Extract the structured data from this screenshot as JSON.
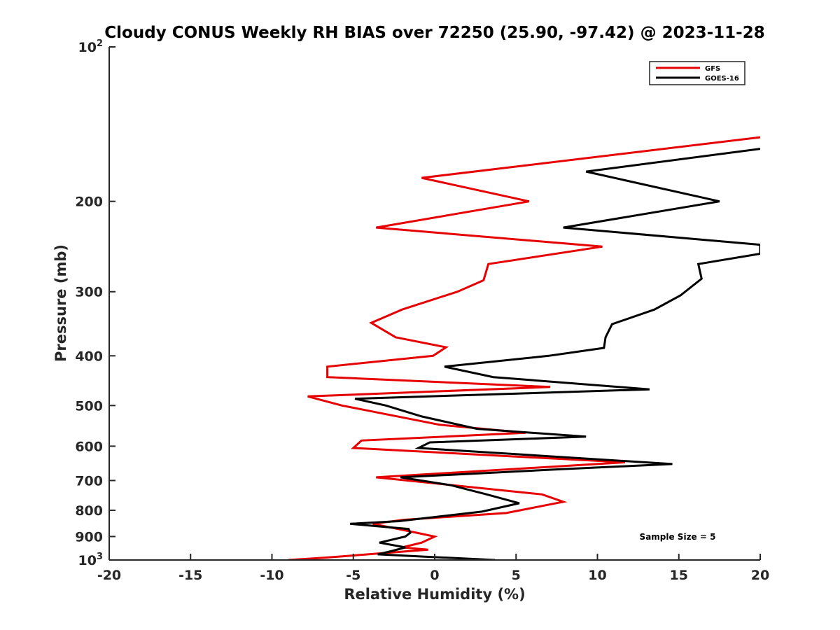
{
  "chart_data": {
    "type": "line",
    "title": "Cloudy CONUS Weekly RH BIAS over 72250 (25.90, -97.42) @ 2023-11-28",
    "xlabel": "Relative Humidity (%)",
    "ylabel": "Pressure (mb)",
    "xlim": [
      -20,
      20
    ],
    "ylim": [
      100,
      1000
    ],
    "y_scale": "log",
    "y_reversed": true,
    "x_ticks": [
      "-20",
      "-15",
      "-10",
      "-5",
      "0",
      "5",
      "10",
      "15",
      "20"
    ],
    "y_ticks": [
      {
        "value": 100,
        "base": "10",
        "exp": "2"
      },
      {
        "value": 200,
        "label": "200"
      },
      {
        "value": 300,
        "label": "300"
      },
      {
        "value": 400,
        "label": "400"
      },
      {
        "value": 500,
        "label": "500"
      },
      {
        "value": 600,
        "label": "600"
      },
      {
        "value": 700,
        "label": "700"
      },
      {
        "value": 800,
        "label": "800"
      },
      {
        "value": 900,
        "label": "900"
      },
      {
        "value": 1000,
        "base": "10",
        "exp": "3"
      }
    ],
    "legend_position": "top-right",
    "grid": false,
    "annotation": "Sample Size = 5",
    "series": [
      {
        "name": "GFS",
        "color": "#e60000",
        "points": [
          [
            20.0,
            150
          ],
          [
            -0.8,
            180
          ],
          [
            5.8,
            200
          ],
          [
            -3.6,
            225
          ],
          [
            10.3,
            245
          ],
          [
            3.3,
            265
          ],
          [
            3.0,
            285
          ],
          [
            1.4,
            300
          ],
          [
            -2.0,
            325
          ],
          [
            -3.9,
            345
          ],
          [
            -2.4,
            368
          ],
          [
            0.7,
            385
          ],
          [
            -0.1,
            400
          ],
          [
            -6.6,
            420
          ],
          [
            -6.6,
            440
          ],
          [
            7.1,
            460
          ],
          [
            -7.8,
            480
          ],
          [
            -5.7,
            500
          ],
          [
            0.3,
            545
          ],
          [
            5.6,
            565
          ],
          [
            -4.5,
            585
          ],
          [
            -5.0,
            605
          ],
          [
            11.7,
            645
          ],
          [
            -3.6,
            690
          ],
          [
            6.6,
            745
          ],
          [
            7.9,
            770
          ],
          [
            4.4,
            810
          ],
          [
            -1.9,
            835
          ],
          [
            -3.8,
            850
          ],
          [
            -1.1,
            885
          ],
          [
            0.0,
            900
          ],
          [
            -0.8,
            925
          ],
          [
            -2.0,
            945
          ],
          [
            -0.4,
            955
          ],
          [
            -3.2,
            970
          ],
          [
            -6.8,
            990
          ],
          [
            -9.0,
            1000
          ]
        ]
      },
      {
        "name": "GOES-16",
        "color": "#000000",
        "points": [
          [
            20.0,
            158
          ],
          [
            9.3,
            175
          ],
          [
            17.5,
            200
          ],
          [
            7.9,
            225
          ],
          [
            20.0,
            243
          ],
          [
            20.0,
            253
          ],
          [
            16.2,
            265
          ],
          [
            16.4,
            283
          ],
          [
            15.1,
            305
          ],
          [
            13.5,
            325
          ],
          [
            10.9,
            347
          ],
          [
            10.5,
            368
          ],
          [
            10.4,
            386
          ],
          [
            7.0,
            400
          ],
          [
            0.6,
            420
          ],
          [
            3.6,
            440
          ],
          [
            13.2,
            465
          ],
          [
            -4.9,
            485
          ],
          [
            -3.0,
            500
          ],
          [
            -0.8,
            525
          ],
          [
            2.6,
            555
          ],
          [
            9.3,
            575
          ],
          [
            -0.3,
            590
          ],
          [
            -1.0,
            605
          ],
          [
            14.6,
            650
          ],
          [
            7.9,
            665
          ],
          [
            -2.1,
            690
          ],
          [
            1.0,
            715
          ],
          [
            3.2,
            745
          ],
          [
            5.2,
            775
          ],
          [
            2.9,
            805
          ],
          [
            -2.2,
            840
          ],
          [
            -5.2,
            850
          ],
          [
            -1.6,
            870
          ],
          [
            -1.5,
            885
          ],
          [
            -1.8,
            900
          ],
          [
            -3.4,
            925
          ],
          [
            -1.8,
            945
          ],
          [
            -2.6,
            960
          ],
          [
            -3.5,
            975
          ],
          [
            -0.6,
            985
          ],
          [
            3.7,
            1000
          ]
        ]
      }
    ]
  }
}
